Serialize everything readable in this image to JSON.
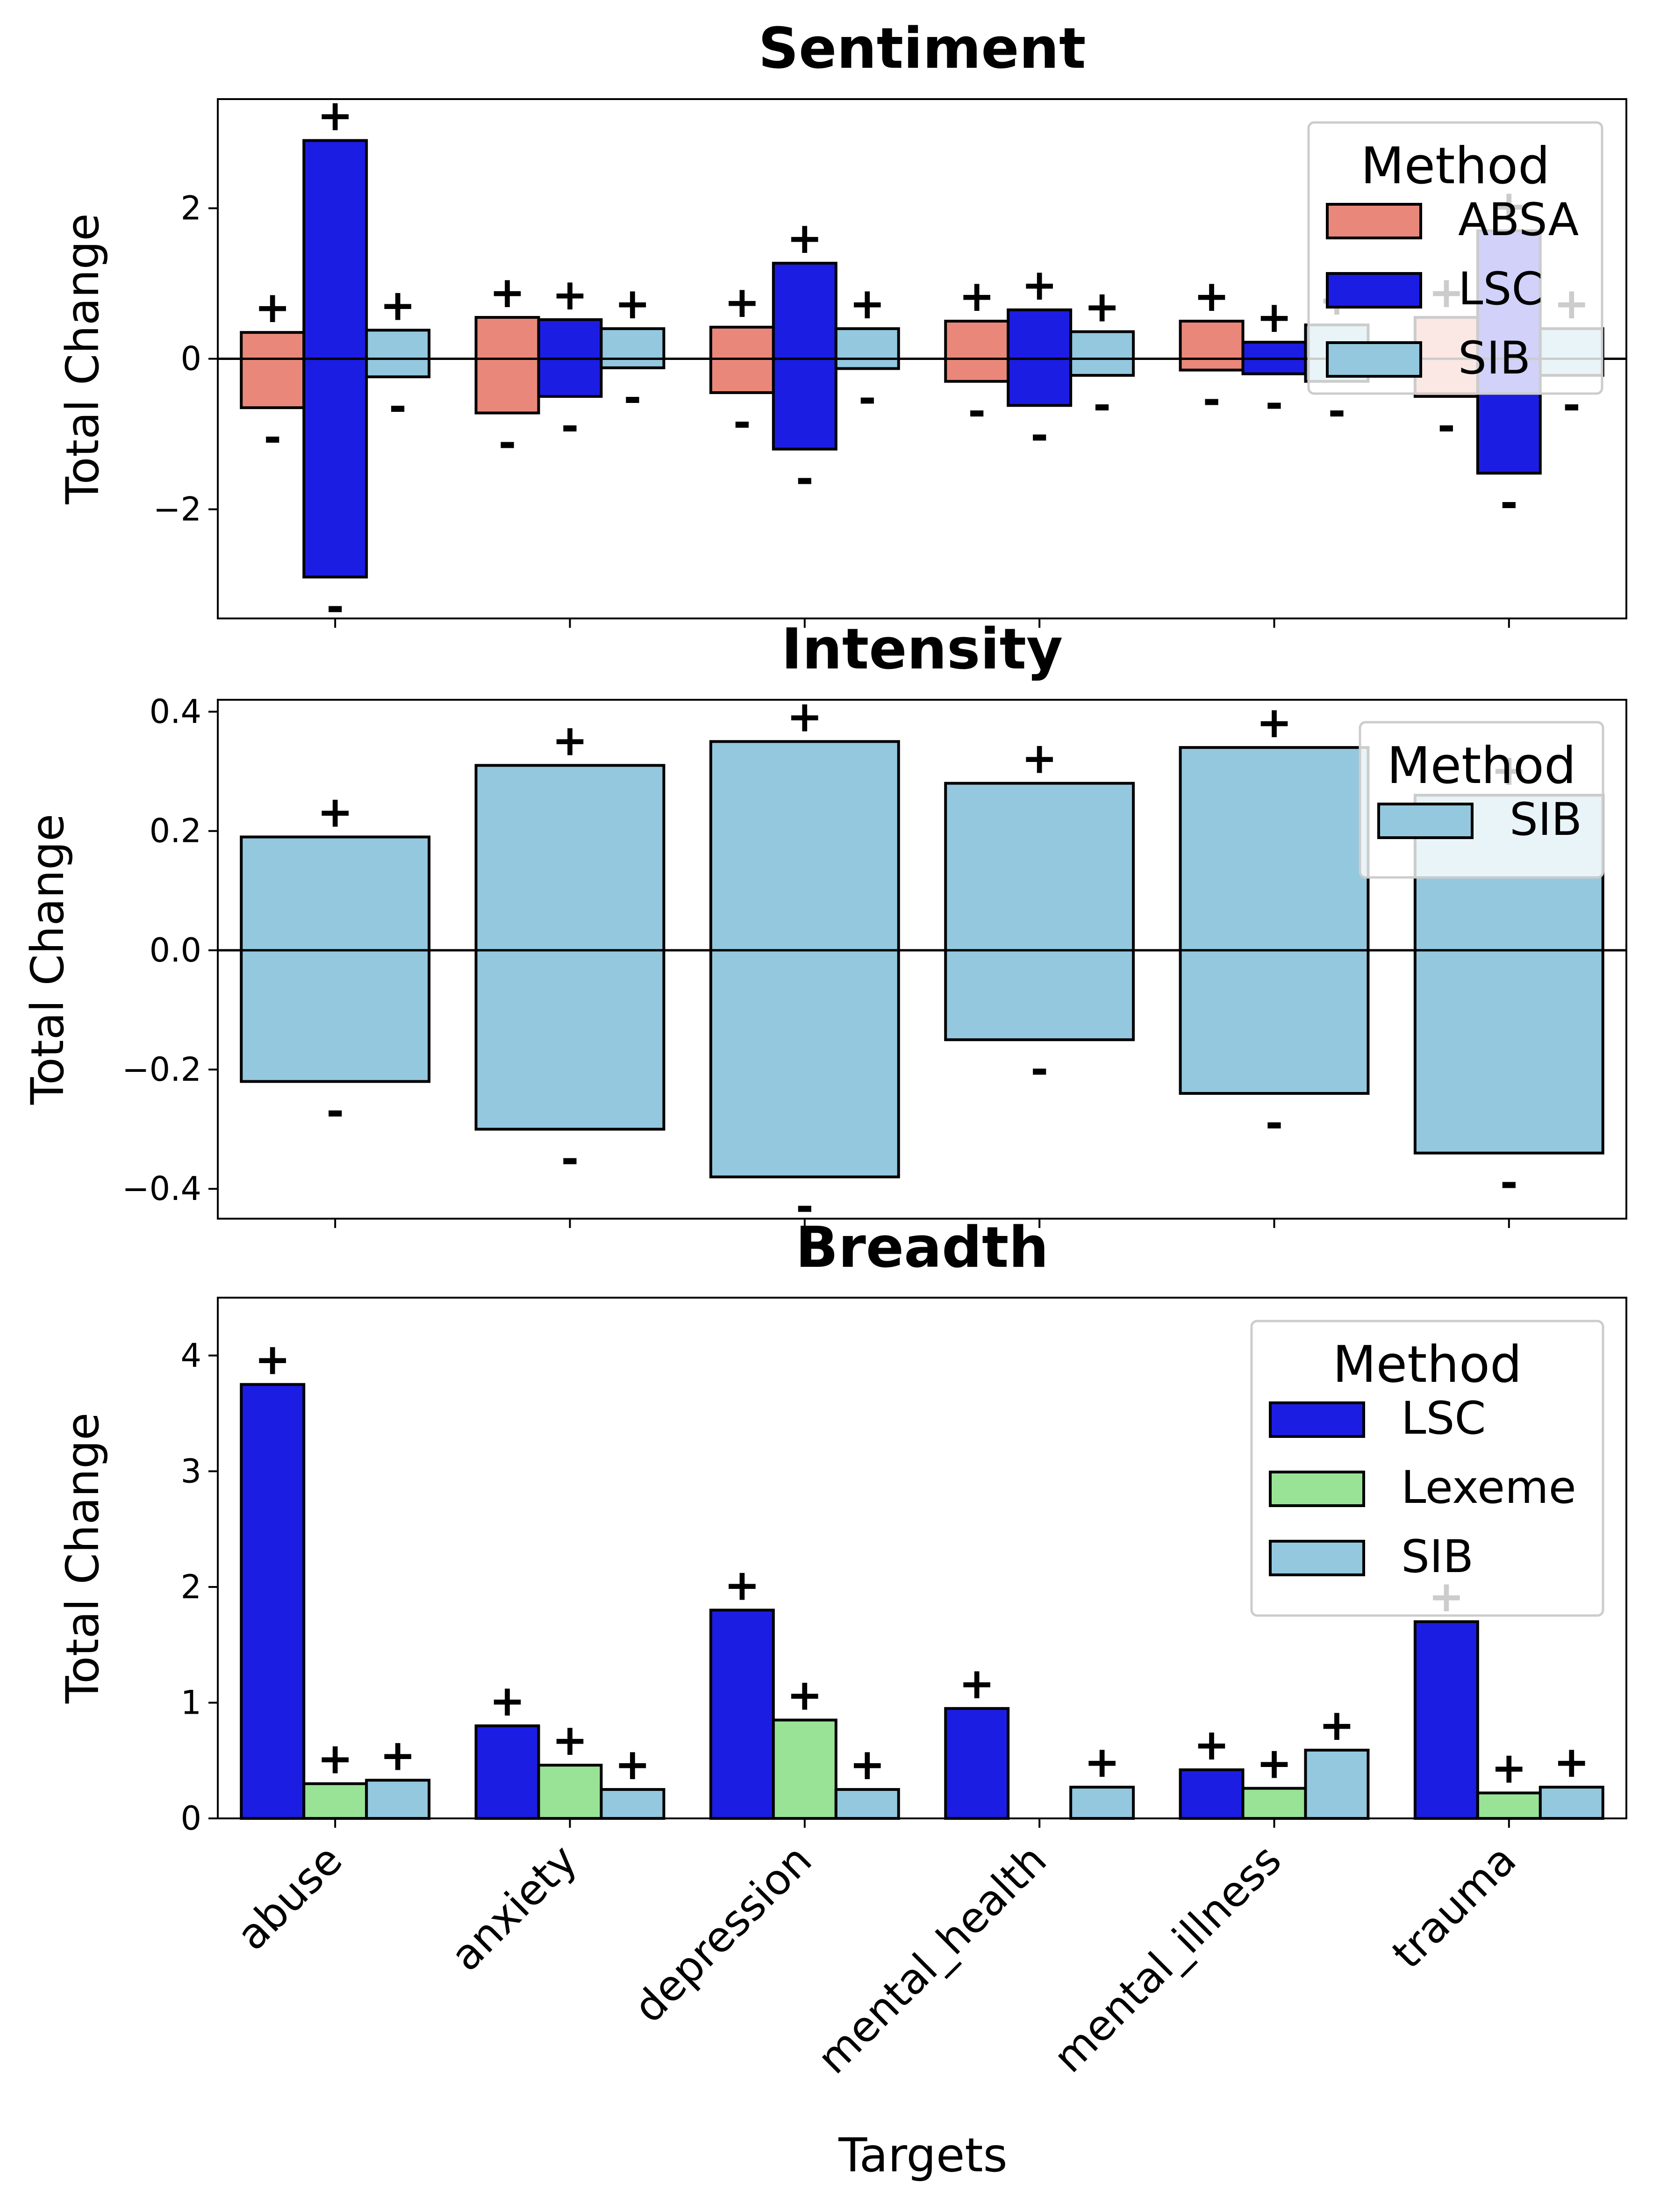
{
  "x_axis_label": "Targets",
  "y_axis_label": "Total Change",
  "legend_title": "Method",
  "colors": {
    "ABSA": "#e9887a",
    "LSC": "#1c1de2",
    "Lexeme": "#98e396",
    "SIB": "#93c8df"
  },
  "chart_data": [
    {
      "type": "bar",
      "title": "Sentiment",
      "ylabel": "Total Change",
      "ylim": [
        -3.45,
        3.45
      ],
      "yticks": [
        -2,
        0,
        2
      ],
      "yticklabels": [
        "−2",
        "0",
        "2"
      ],
      "categories": [
        "abuse",
        "anxiety",
        "depression",
        "mental_health",
        "mental_illness",
        "trauma"
      ],
      "legend_title": "Method",
      "legend_position": "top-right",
      "series": [
        {
          "name": "ABSA",
          "positive": [
            0.35,
            0.55,
            0.42,
            0.5,
            0.5,
            0.55
          ],
          "negative": [
            -0.65,
            -0.72,
            -0.45,
            -0.3,
            -0.15,
            -0.5
          ]
        },
        {
          "name": "LSC",
          "positive": [
            2.9,
            0.52,
            1.27,
            0.65,
            0.22,
            1.7
          ],
          "negative": [
            -2.9,
            -0.5,
            -1.2,
            -0.62,
            -0.2,
            -1.52
          ]
        },
        {
          "name": "SIB",
          "positive": [
            0.38,
            0.4,
            0.4,
            0.36,
            0.45,
            0.4
          ],
          "negative": [
            -0.24,
            -0.12,
            -0.13,
            -0.22,
            -0.3,
            -0.22
          ]
        }
      ],
      "positive_marker": "+",
      "negative_marker": "-"
    },
    {
      "type": "bar",
      "title": "Intensity",
      "ylabel": "Total Change",
      "ylim": [
        -0.45,
        0.42
      ],
      "yticks": [
        -0.4,
        -0.2,
        0.0,
        0.2,
        0.4
      ],
      "yticklabels": [
        "−0.4",
        "−0.2",
        "0.0",
        "0.2",
        "0.4"
      ],
      "categories": [
        "abuse",
        "anxiety",
        "depression",
        "mental_health",
        "mental_illness",
        "trauma"
      ],
      "legend_title": "Method",
      "legend_position": "top-right",
      "series": [
        {
          "name": "SIB",
          "positive": [
            0.19,
            0.31,
            0.35,
            0.28,
            0.34,
            0.26
          ],
          "negative": [
            -0.22,
            -0.3,
            -0.38,
            -0.15,
            -0.24,
            -0.34
          ]
        }
      ],
      "positive_marker": "+",
      "negative_marker": "-"
    },
    {
      "type": "bar",
      "title": "Breadth",
      "ylabel": "Total Change",
      "xlabel": "Targets",
      "ylim": [
        0,
        4.5
      ],
      "yticks": [
        0,
        1,
        2,
        3,
        4
      ],
      "yticklabels": [
        "0",
        "1",
        "2",
        "3",
        "4"
      ],
      "categories": [
        "abuse",
        "anxiety",
        "depression",
        "mental_health",
        "mental_illness",
        "trauma"
      ],
      "legend_title": "Method",
      "legend_position": "top-right",
      "series": [
        {
          "name": "LSC",
          "positive": [
            3.75,
            0.8,
            1.8,
            0.95,
            0.42,
            1.7
          ]
        },
        {
          "name": "Lexeme",
          "positive": [
            0.3,
            0.46,
            0.85,
            null,
            0.26,
            0.22
          ]
        },
        {
          "name": "SIB",
          "positive": [
            0.33,
            0.25,
            0.25,
            0.27,
            0.59,
            0.27
          ]
        }
      ],
      "positive_marker": "+"
    }
  ]
}
